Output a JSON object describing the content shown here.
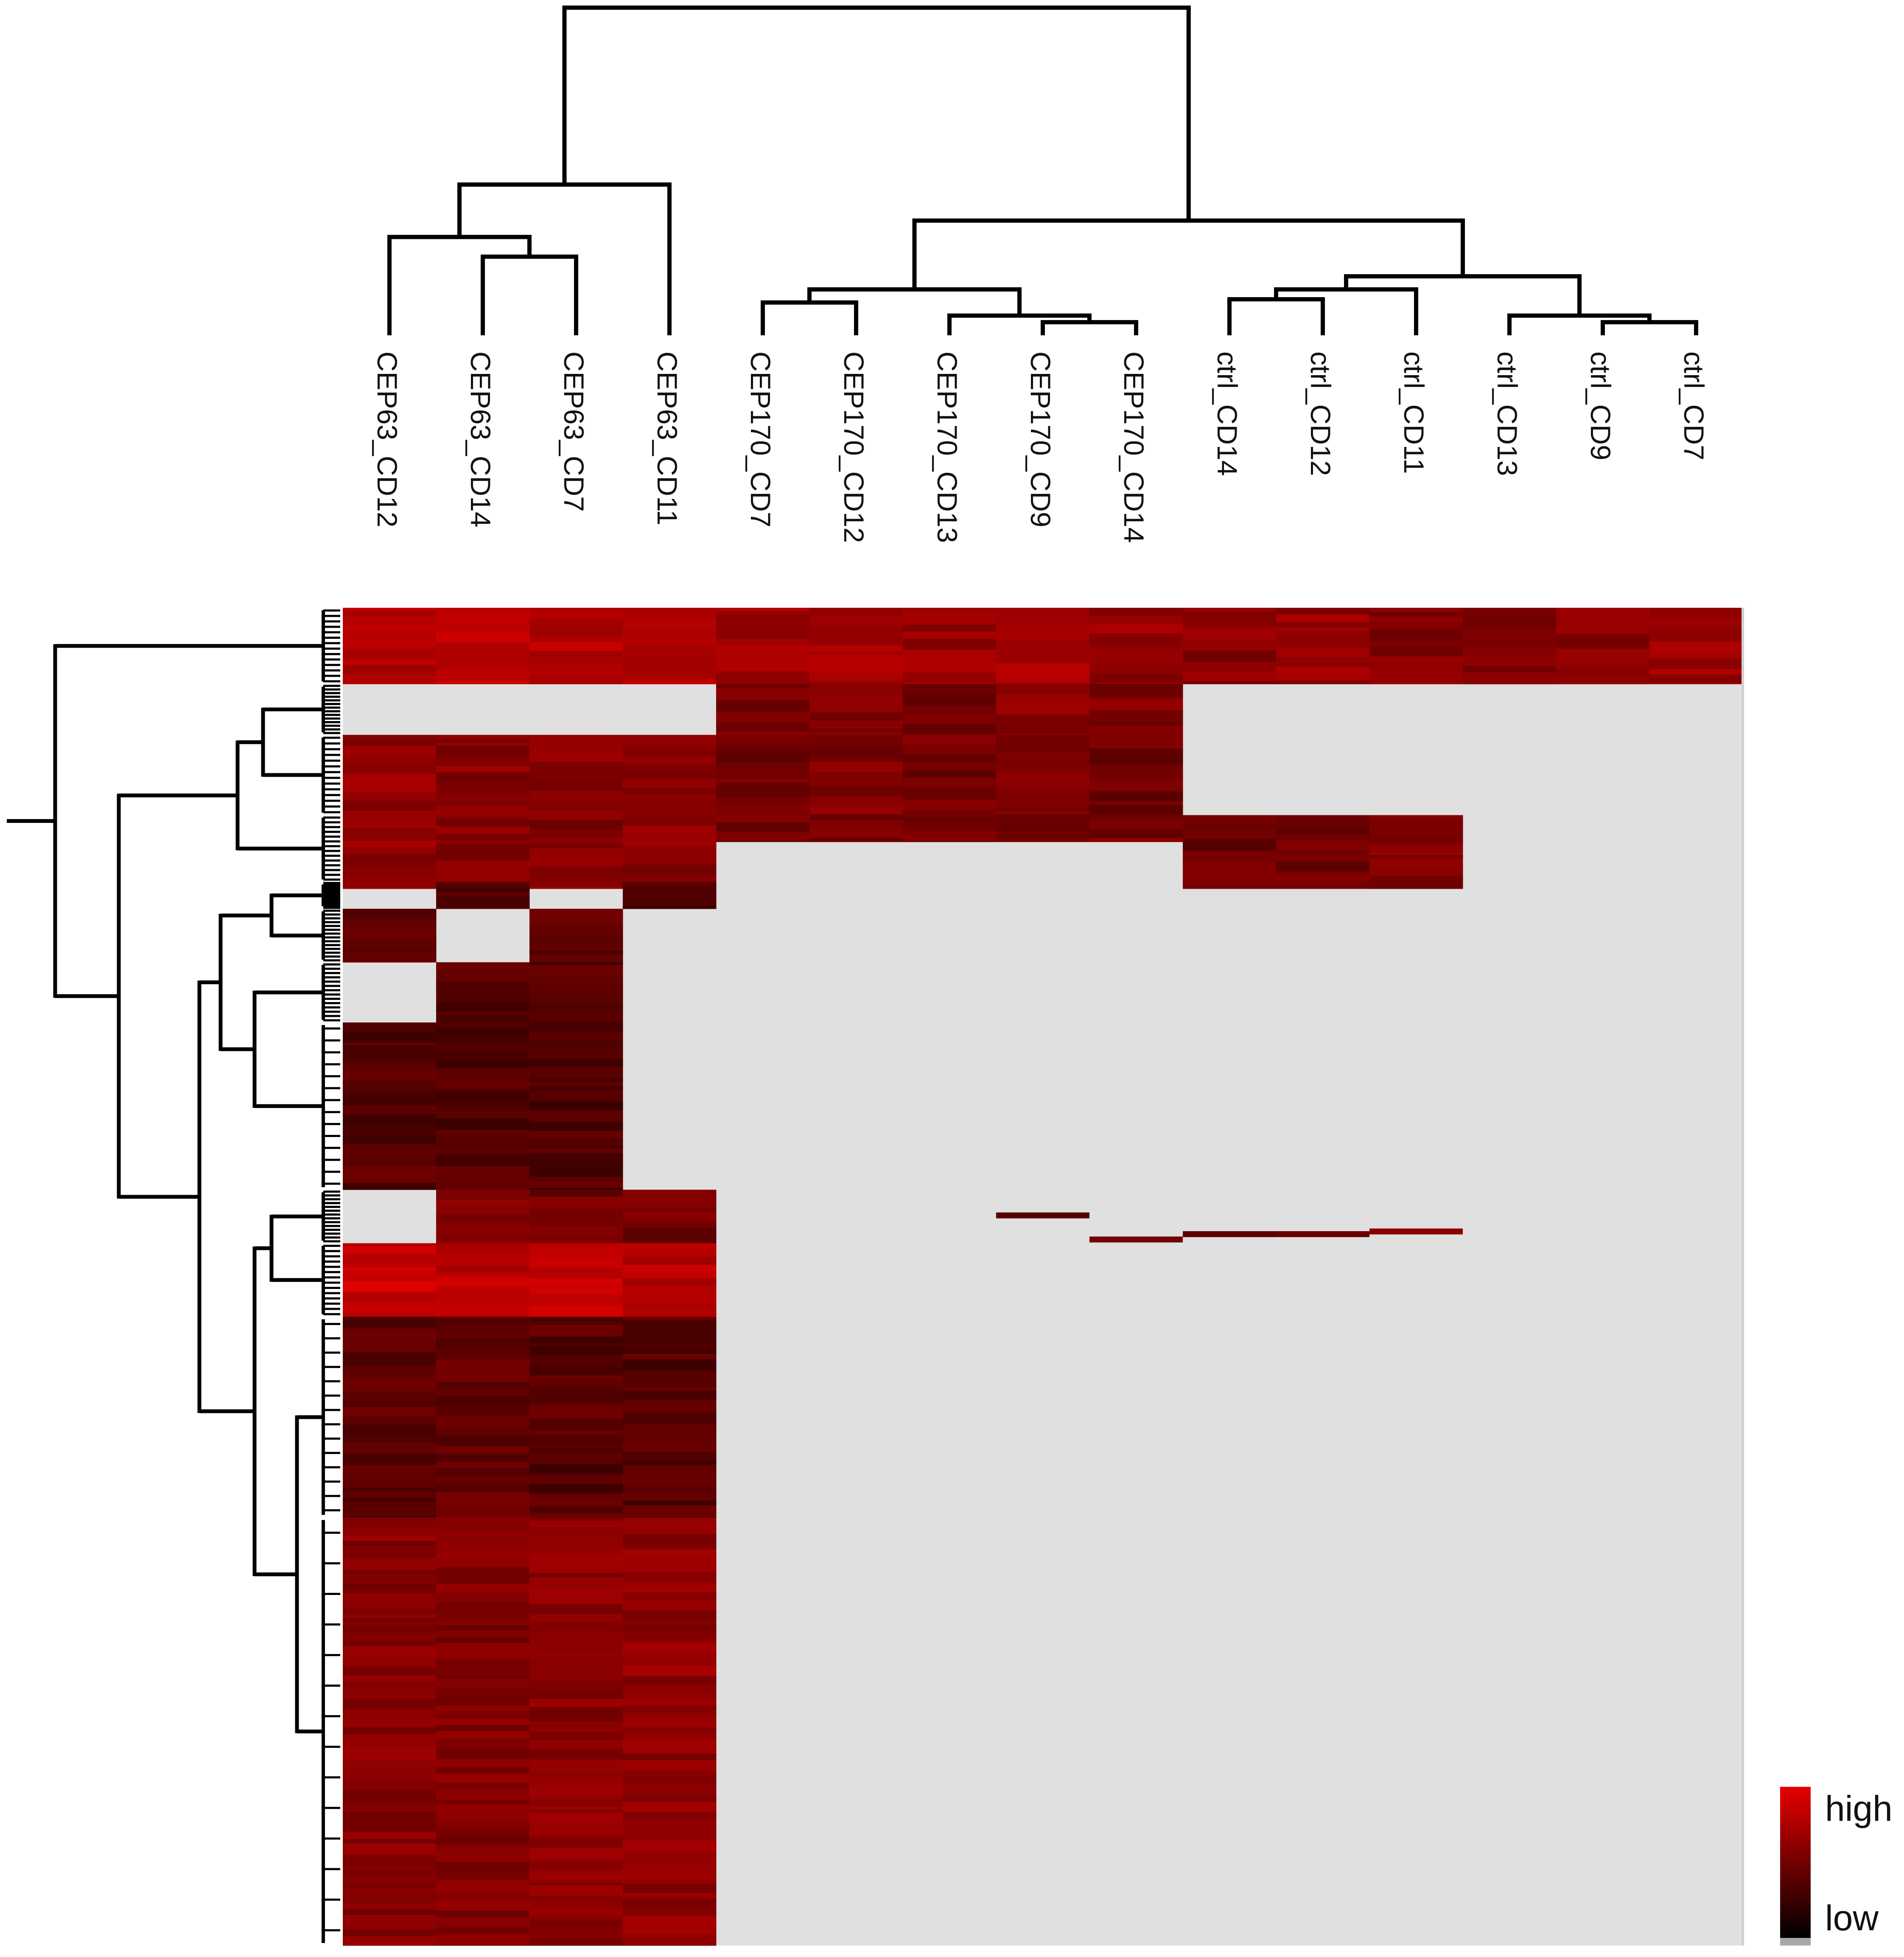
{
  "chart_data": {
    "type": "heatmap",
    "title": "",
    "xlabel": "",
    "ylabel": "",
    "columns": [
      "CEP63_CD12",
      "CEP63_CD14",
      "CEP63_CD7",
      "CEP63_CD11",
      "CEP170_CD7",
      "CEP170_CD12",
      "CEP170_CD13",
      "CEP170_CD9",
      "CEP170_CD14",
      "ctrl_CD14",
      "ctrl_CD12",
      "ctrl_CD11",
      "ctrl_CD13",
      "ctrl_CD9",
      "ctrl_CD7"
    ],
    "column_dendrogram": [
      {
        "left": "CEP63_CD14",
        "right": "CEP63_CD7",
        "height": 0.24
      },
      {
        "left": "CEP63_CD12",
        "right": "CEP63_CD14+CEP63_CD7",
        "height": 0.3
      },
      {
        "left": "CEP63_CD12+CEP63_CD14+CEP63_CD7",
        "right": "CEP63_CD11",
        "height": 0.46
      },
      {
        "left": "CEP170_CD9",
        "right": "CEP170_CD14",
        "height": 0.04
      },
      {
        "left": "CEP170_CD13",
        "right": "CEP170_CD9+CEP170_CD14",
        "height": 0.06
      },
      {
        "left": "CEP170_CD7",
        "right": "CEP170_CD12",
        "height": 0.1
      },
      {
        "left": "CEP170_CD7+CEP170_CD12",
        "right": "CEP170_CD13+CEP170_CD9+CEP170_CD14",
        "height": 0.14
      },
      {
        "left": "ctrl_CD14",
        "right": "ctrl_CD12",
        "height": 0.11
      },
      {
        "left": "ctrl_CD9",
        "right": "ctrl_CD7",
        "height": 0.04
      },
      {
        "left": "ctrl_CD13",
        "right": "ctrl_CD9+ctrl_CD7",
        "height": 0.06
      },
      {
        "left": "ctrl_CD14+ctrl_CD12",
        "right": "ctrl_CD11",
        "height": 0.14
      },
      {
        "left": "ctrl_CD14+ctrl_CD12+ctrl_CD11",
        "right": "ctrl_CD13+ctrl_CD9+ctrl_CD7",
        "height": 0.18
      },
      {
        "left": "CEP170",
        "right": "ctrl",
        "height": 0.35
      },
      {
        "left": "CEP63",
        "right": "CEP170+ctrl",
        "height": 1.0
      }
    ],
    "row_blocks": [
      {
        "rows": [
          0.0,
          0.057
        ],
        "cols": {
          "CEP63_CD12": 0.78,
          "CEP63_CD14": 0.8,
          "CEP63_CD7": 0.78,
          "CEP63_CD11": 0.75,
          "CEP170_CD7": 0.68,
          "CEP170_CD12": 0.7,
          "CEP170_CD13": 0.66,
          "CEP170_CD9": 0.7,
          "CEP170_CD14": 0.65,
          "ctrl_CD14": 0.6,
          "ctrl_CD12": 0.64,
          "ctrl_CD11": 0.58,
          "ctrl_CD13": 0.5,
          "ctrl_CD9": 0.6,
          "ctrl_CD7": 0.68
        }
      },
      {
        "rows": [
          0.057,
          0.095
        ],
        "cols": {
          "CEP170_CD7": 0.55,
          "CEP170_CD12": 0.58,
          "CEP170_CD13": 0.52,
          "CEP170_CD9": 0.6,
          "CEP170_CD14": 0.56
        }
      },
      {
        "rows": [
          0.095,
          0.175
        ],
        "cols": {
          "CEP63_CD12": 0.62,
          "CEP63_CD14": 0.6,
          "CEP63_CD7": 0.58,
          "CEP63_CD11": 0.58,
          "CEP170_CD7": 0.5,
          "CEP170_CD12": 0.55,
          "CEP170_CD13": 0.5,
          "CEP170_CD9": 0.52,
          "CEP170_CD14": 0.5
        }
      },
      {
        "rows": [
          0.155,
          0.21
        ],
        "cols": {
          "CEP63_CD12": 0.62,
          "CEP63_CD14": 0.6,
          "CEP63_CD7": 0.58,
          "CEP63_CD11": 0.58,
          "ctrl_CD14": 0.48,
          "ctrl_CD12": 0.5,
          "ctrl_CD11": 0.58
        }
      },
      {
        "rows": [
          0.205,
          0.225
        ],
        "cols": {
          "CEP63_CD14": 0.4,
          "CEP63_CD11": 0.3
        }
      },
      {
        "rows": [
          0.225,
          0.265
        ],
        "cols": {
          "CEP63_CD12": 0.4,
          "CEP63_CD7": 0.42
        }
      },
      {
        "rows": [
          0.265,
          0.31
        ],
        "cols": {
          "CEP63_CD14": 0.38,
          "CEP63_CD7": 0.36
        }
      },
      {
        "rows": [
          0.31,
          0.435
        ],
        "cols": {
          "CEP63_CD12": 0.38,
          "CEP63_CD14": 0.36,
          "CEP63_CD7": 0.34
        }
      },
      {
        "rows": [
          0.435,
          0.475
        ],
        "cols": {
          "CEP63_CD14": 0.55,
          "CEP63_CD7": 0.5,
          "CEP63_CD11": 0.5
        }
      },
      {
        "rows": [
          0.475,
          0.53
        ],
        "cols": {
          "CEP63_CD12": 0.85,
          "CEP63_CD14": 0.82,
          "CEP63_CD7": 0.86,
          "CEP63_CD11": 0.8
        }
      },
      {
        "rows": [
          0.53,
          0.68
        ],
        "cols": {
          "CEP63_CD12": 0.38,
          "CEP63_CD14": 0.42,
          "CEP63_CD7": 0.38,
          "CEP63_CD11": 0.36
        }
      },
      {
        "rows": [
          0.68,
          1.0
        ],
        "cols": {
          "CEP63_CD12": 0.58,
          "CEP63_CD14": 0.55,
          "CEP63_CD7": 0.6,
          "CEP63_CD11": 0.62
        }
      }
    ],
    "missing_color": "#e0e0e0",
    "color_scale": {
      "low": "#000000",
      "high": "#e60000"
    },
    "legend": {
      "high_label": "high",
      "low_label": "low",
      "position": "bottom-right"
    },
    "row_dendrogram": "present (left side, unlabeled)"
  }
}
